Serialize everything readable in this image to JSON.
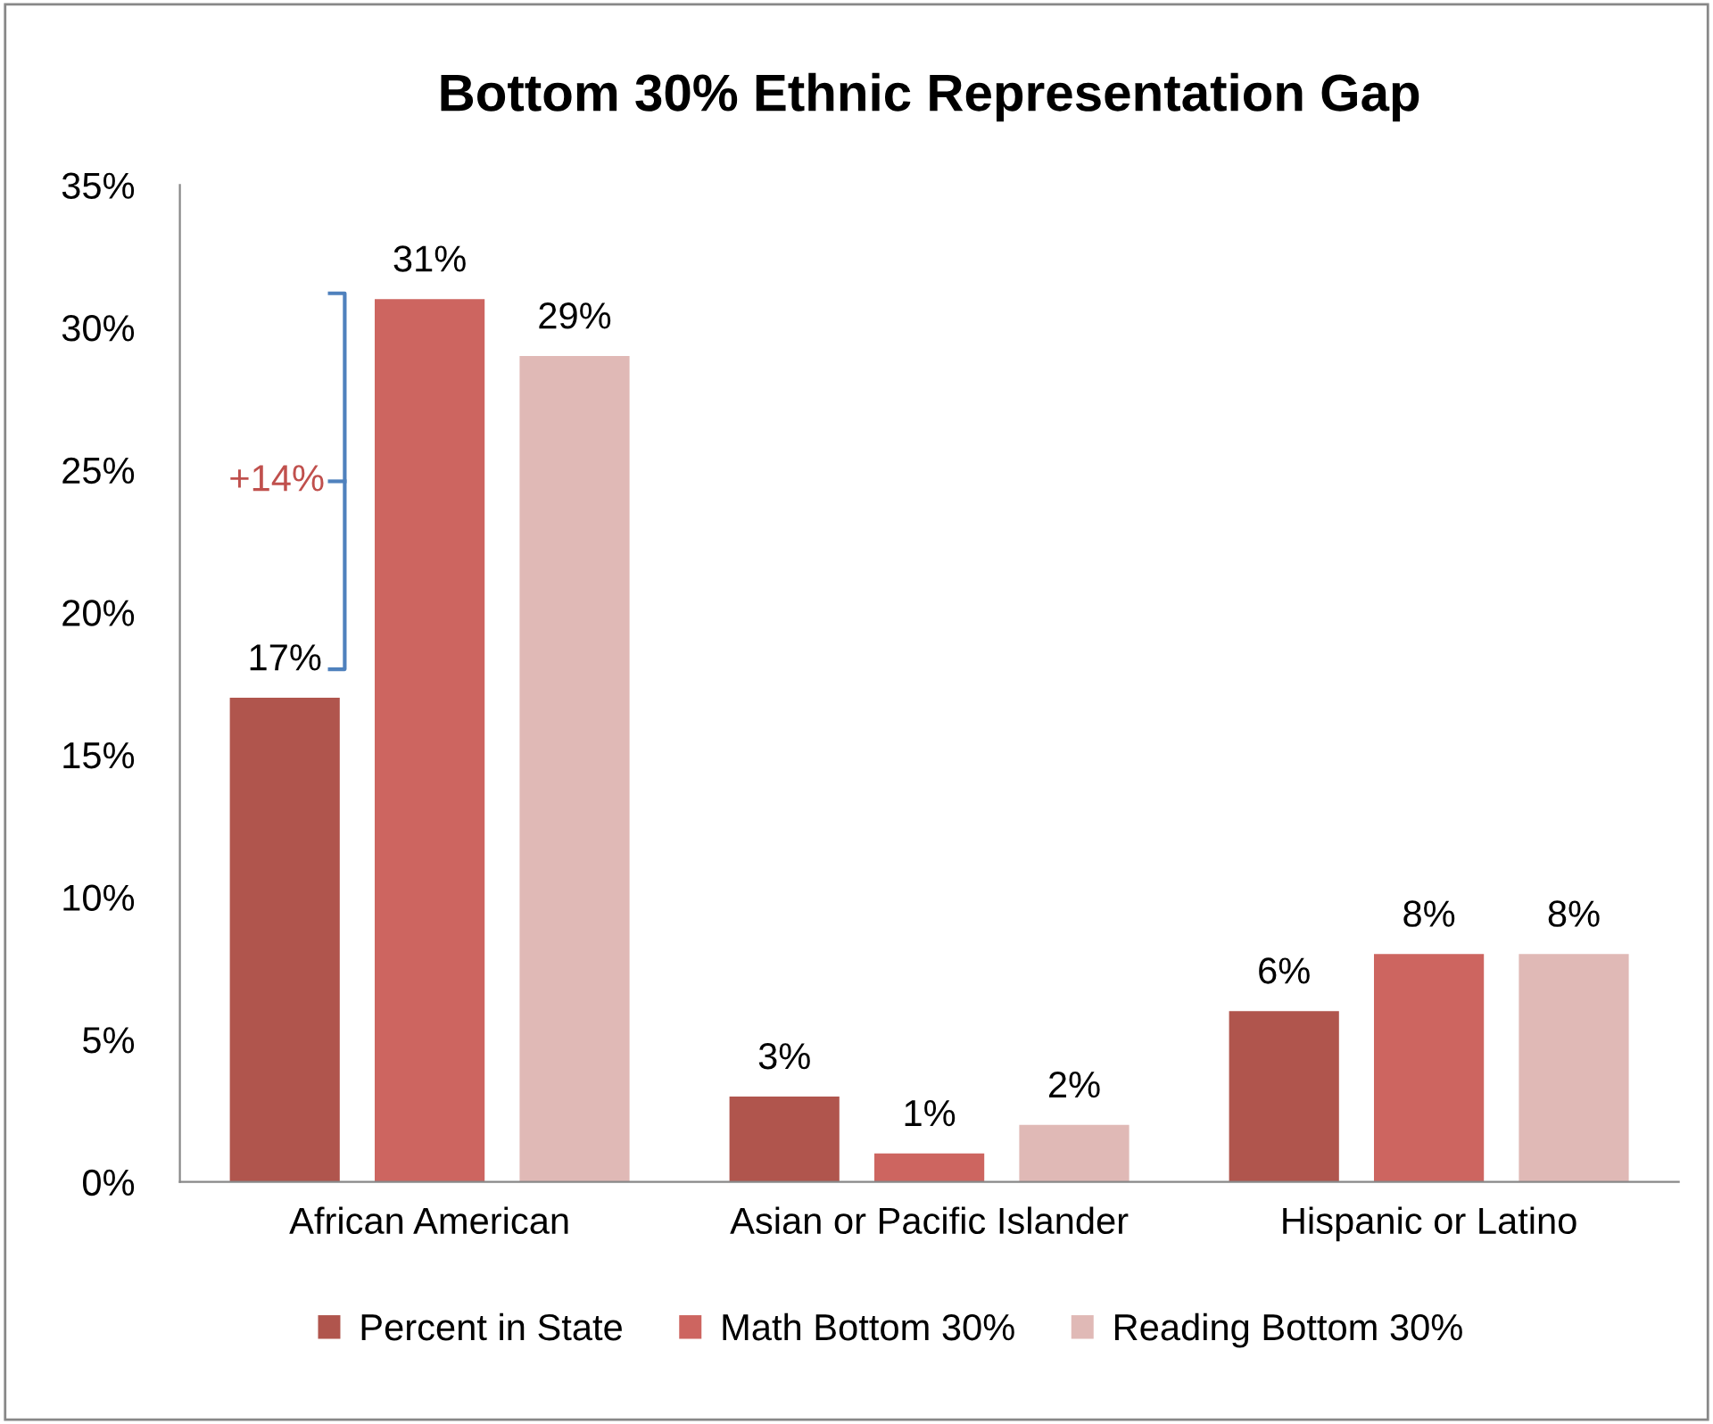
{
  "chart_data": {
    "type": "bar",
    "title": "Bottom 30% Ethnic Representation Gap",
    "categories": [
      "African American",
      "Asian or Pacific Islander",
      "Hispanic or Latino"
    ],
    "series": [
      {
        "name": "Percent in State",
        "color": "#b0554d",
        "values": [
          17,
          3,
          6
        ],
        "value_labels": [
          "17%",
          "3%",
          "6%"
        ]
      },
      {
        "name": "Math Bottom 30%",
        "color": "#cd6560",
        "values": [
          31,
          1,
          8
        ],
        "value_labels": [
          "31%",
          "1%",
          "8%"
        ]
      },
      {
        "name": "Reading Bottom 30%",
        "color": "#e0b9b6",
        "values": [
          29,
          2,
          8
        ],
        "value_labels": [
          "29%",
          "2%",
          "8%"
        ]
      }
    ],
    "ylim": [
      0,
      35
    ],
    "yticks": [
      {
        "value": 0,
        "label": "0%"
      },
      {
        "value": 5,
        "label": "5%"
      },
      {
        "value": 10,
        "label": "10%"
      },
      {
        "value": 15,
        "label": "15%"
      },
      {
        "value": 20,
        "label": "20%"
      },
      {
        "value": 25,
        "label": "25%"
      },
      {
        "value": 30,
        "label": "30%"
      },
      {
        "value": 35,
        "label": "35%"
      }
    ],
    "annotations": [
      "+14%"
    ],
    "grid": false,
    "legend": "bottom"
  }
}
